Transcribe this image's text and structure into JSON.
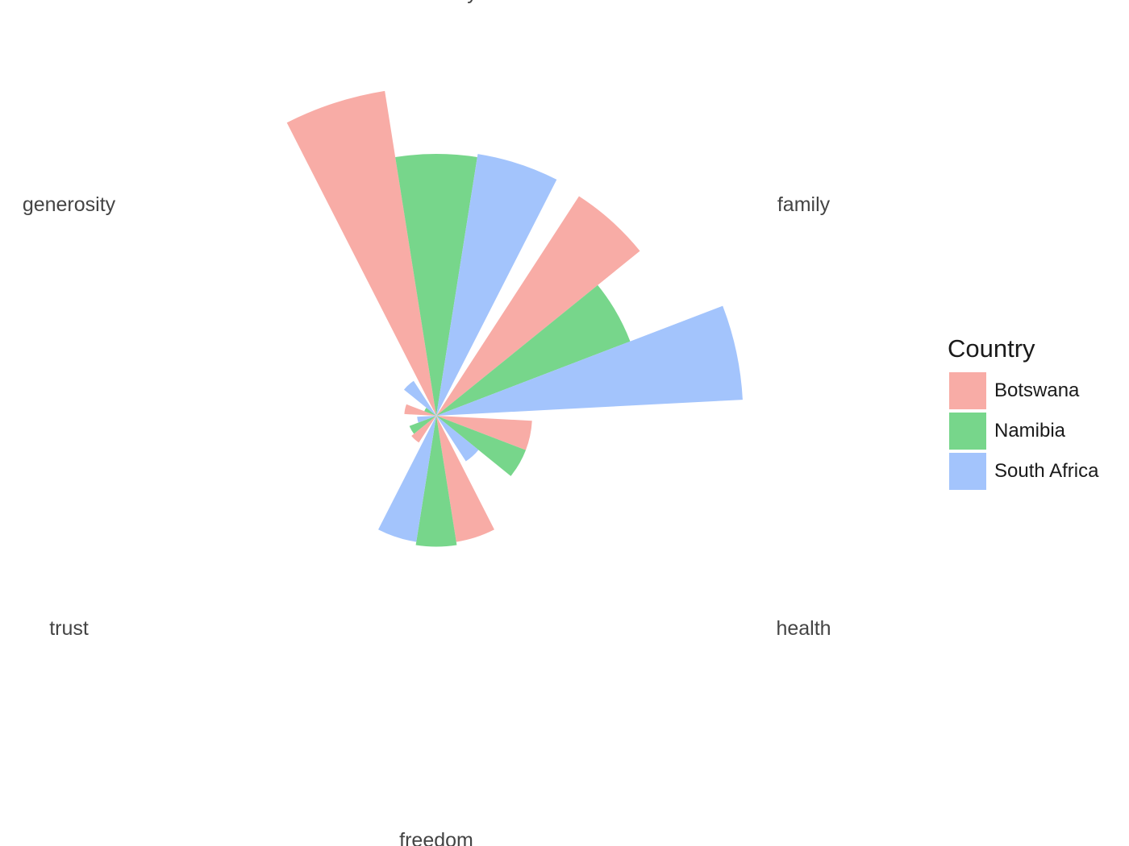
{
  "chart_data": {
    "type": "bar",
    "coord": "polar",
    "categories": [
      "economy",
      "family",
      "health",
      "freedom",
      "trust",
      "generosity"
    ],
    "series": [
      {
        "name": "Botswana",
        "color": "#F8ACA6",
        "values": [
          1.03,
          0.82,
          0.3,
          0.4,
          0.1,
          0.1
        ]
      },
      {
        "name": "Namibia",
        "color": "#77D68B",
        "values": [
          0.82,
          0.65,
          0.3,
          0.41,
          0.09,
          0.04
        ]
      },
      {
        "name": "South Africa",
        "color": "#A3C4FC",
        "values": [
          0.83,
          0.96,
          0.17,
          0.4,
          0.06,
          0.13
        ]
      }
    ],
    "ylim": [
      0,
      1.08
    ],
    "grid": false,
    "legend_placement": "right",
    "legend_title": "Country"
  }
}
